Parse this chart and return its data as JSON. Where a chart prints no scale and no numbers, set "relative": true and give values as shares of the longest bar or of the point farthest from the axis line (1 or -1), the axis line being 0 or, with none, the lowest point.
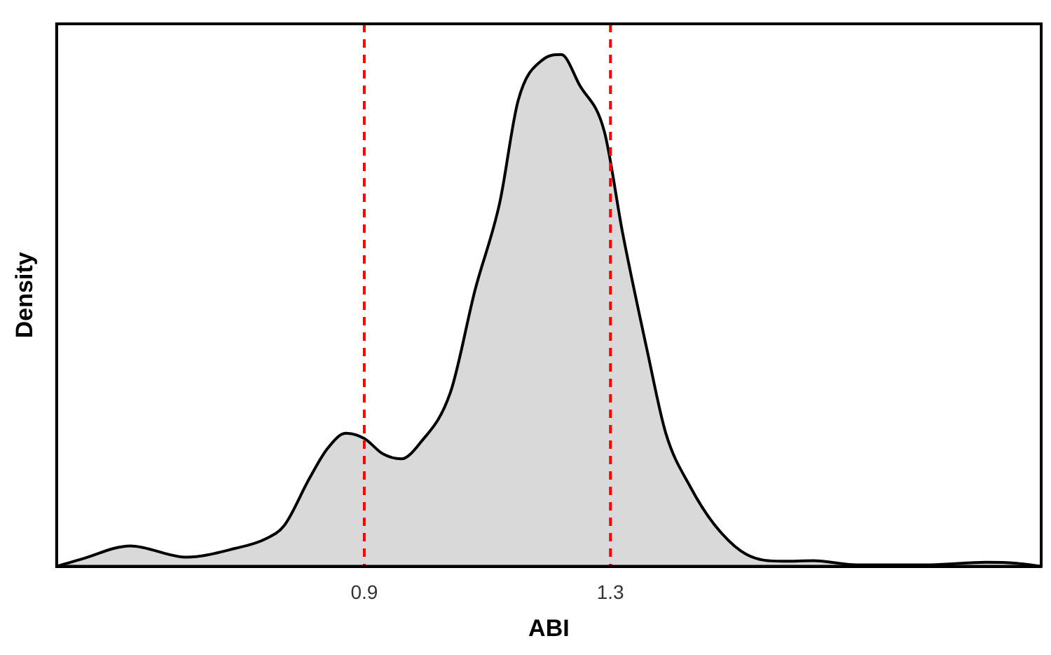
{
  "chart_data": {
    "type": "area",
    "xlabel": "ABI",
    "ylabel": "Density",
    "relative": true,
    "xlim": [
      0.4,
      2.0
    ],
    "xticks": [
      0.9,
      1.3
    ],
    "grid": false,
    "legend": false,
    "marker": "none",
    "line_style": "solid",
    "x": [
      0.4,
      0.44,
      0.52,
      0.61,
      0.69,
      0.74,
      0.77,
      0.81,
      0.84,
      0.87,
      0.9,
      0.93,
      0.96,
      0.99,
      1.04,
      1.08,
      1.12,
      1.15,
      1.19,
      1.22,
      1.25,
      1.29,
      1.32,
      1.36,
      1.39,
      1.43,
      1.47,
      1.52,
      1.58,
      1.63,
      1.7,
      1.82,
      1.91,
      1.96,
      2.0
    ],
    "series": [
      {
        "color": "#d9d9d9",
        "values": [
          0,
          0.014,
          0.04,
          0.018,
          0.035,
          0.054,
          0.08,
          0.17,
          0.23,
          0.26,
          0.25,
          0.22,
          0.21,
          0.24,
          0.34,
          0.54,
          0.71,
          0.91,
          0.99,
          1,
          0.94,
          0.85,
          0.65,
          0.42,
          0.26,
          0.155,
          0.08,
          0.024,
          0.01,
          0.011,
          0.003,
          0.003,
          0.008,
          0.006,
          0
        ]
      }
    ],
    "ref_lines": [
      {
        "axis": "x",
        "value": 0.9,
        "color": "#ff0000",
        "line_style": "dashed"
      },
      {
        "axis": "x",
        "value": 1.3,
        "color": "#ff0000",
        "line_style": "dashed"
      }
    ]
  }
}
